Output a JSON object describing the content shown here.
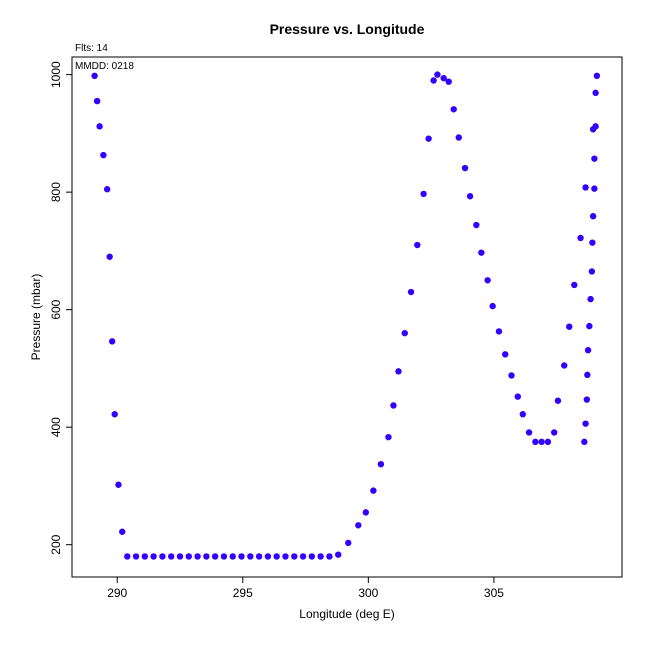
{
  "chart_data": {
    "type": "scatter",
    "title": "Pressure vs. Longitude",
    "xlabel": "Longitude (deg E)",
    "ylabel": "Pressure (mbar)",
    "xlim": [
      288.2,
      310.1
    ],
    "ylim": [
      1030,
      145
    ],
    "y_reversed": true,
    "grid": false,
    "x_ticks": [
      290,
      295,
      300,
      305
    ],
    "y_ticks": [
      200,
      400,
      600,
      800,
      1000
    ],
    "point_color": "#3300ff",
    "annotations": [
      "Flts: 14",
      "MMDD: 0218"
    ],
    "points": [
      {
        "x": 289.1,
        "y": 998
      },
      {
        "x": 289.2,
        "y": 955
      },
      {
        "x": 289.3,
        "y": 912
      },
      {
        "x": 289.45,
        "y": 863
      },
      {
        "x": 289.6,
        "y": 805
      },
      {
        "x": 289.7,
        "y": 690
      },
      {
        "x": 289.8,
        "y": 546
      },
      {
        "x": 289.9,
        "y": 422
      },
      {
        "x": 290.05,
        "y": 302
      },
      {
        "x": 290.2,
        "y": 222
      },
      {
        "x": 290.4,
        "y": 180
      },
      {
        "x": 290.75,
        "y": 180
      },
      {
        "x": 291.1,
        "y": 180
      },
      {
        "x": 291.45,
        "y": 180
      },
      {
        "x": 291.8,
        "y": 180
      },
      {
        "x": 292.15,
        "y": 180
      },
      {
        "x": 292.5,
        "y": 180
      },
      {
        "x": 292.85,
        "y": 180
      },
      {
        "x": 293.2,
        "y": 180
      },
      {
        "x": 293.55,
        "y": 180
      },
      {
        "x": 293.9,
        "y": 180
      },
      {
        "x": 294.25,
        "y": 180
      },
      {
        "x": 294.6,
        "y": 180
      },
      {
        "x": 294.95,
        "y": 180
      },
      {
        "x": 295.3,
        "y": 180
      },
      {
        "x": 295.65,
        "y": 180
      },
      {
        "x": 296.0,
        "y": 180
      },
      {
        "x": 296.35,
        "y": 180
      },
      {
        "x": 296.7,
        "y": 180
      },
      {
        "x": 297.05,
        "y": 180
      },
      {
        "x": 297.4,
        "y": 180
      },
      {
        "x": 297.75,
        "y": 180
      },
      {
        "x": 298.1,
        "y": 180
      },
      {
        "x": 298.45,
        "y": 180
      },
      {
        "x": 298.8,
        "y": 183
      },
      {
        "x": 299.2,
        "y": 203
      },
      {
        "x": 299.6,
        "y": 233
      },
      {
        "x": 299.9,
        "y": 255
      },
      {
        "x": 300.2,
        "y": 292
      },
      {
        "x": 300.5,
        "y": 337
      },
      {
        "x": 300.8,
        "y": 383
      },
      {
        "x": 301.0,
        "y": 437
      },
      {
        "x": 301.2,
        "y": 495
      },
      {
        "x": 301.45,
        "y": 560
      },
      {
        "x": 301.7,
        "y": 630
      },
      {
        "x": 301.95,
        "y": 710
      },
      {
        "x": 302.2,
        "y": 797
      },
      {
        "x": 302.4,
        "y": 891
      },
      {
        "x": 302.6,
        "y": 990
      },
      {
        "x": 302.75,
        "y": 1000
      },
      {
        "x": 303.0,
        "y": 994
      },
      {
        "x": 303.2,
        "y": 988
      },
      {
        "x": 303.4,
        "y": 941
      },
      {
        "x": 303.6,
        "y": 893
      },
      {
        "x": 303.85,
        "y": 841
      },
      {
        "x": 304.05,
        "y": 793
      },
      {
        "x": 304.3,
        "y": 744
      },
      {
        "x": 304.5,
        "y": 697
      },
      {
        "x": 304.75,
        "y": 650
      },
      {
        "x": 304.95,
        "y": 606
      },
      {
        "x": 305.2,
        "y": 563
      },
      {
        "x": 305.45,
        "y": 524
      },
      {
        "x": 305.7,
        "y": 488
      },
      {
        "x": 305.95,
        "y": 452
      },
      {
        "x": 306.15,
        "y": 422
      },
      {
        "x": 306.4,
        "y": 391
      },
      {
        "x": 306.65,
        "y": 375
      },
      {
        "x": 306.9,
        "y": 375
      },
      {
        "x": 307.15,
        "y": 375
      },
      {
        "x": 307.4,
        "y": 391
      },
      {
        "x": 307.55,
        "y": 445
      },
      {
        "x": 307.8,
        "y": 505
      },
      {
        "x": 308.0,
        "y": 571
      },
      {
        "x": 308.2,
        "y": 642
      },
      {
        "x": 308.45,
        "y": 722
      },
      {
        "x": 308.6,
        "y": 375
      },
      {
        "x": 308.65,
        "y": 406
      },
      {
        "x": 308.7,
        "y": 447
      },
      {
        "x": 308.72,
        "y": 489
      },
      {
        "x": 308.75,
        "y": 531
      },
      {
        "x": 308.65,
        "y": 808
      },
      {
        "x": 308.8,
        "y": 572
      },
      {
        "x": 308.85,
        "y": 618
      },
      {
        "x": 308.9,
        "y": 665
      },
      {
        "x": 308.92,
        "y": 714
      },
      {
        "x": 308.95,
        "y": 759
      },
      {
        "x": 309.0,
        "y": 806
      },
      {
        "x": 309.0,
        "y": 857
      },
      {
        "x": 308.95,
        "y": 907
      },
      {
        "x": 309.05,
        "y": 912
      },
      {
        "x": 309.05,
        "y": 969
      },
      {
        "x": 309.1,
        "y": 998
      }
    ]
  }
}
